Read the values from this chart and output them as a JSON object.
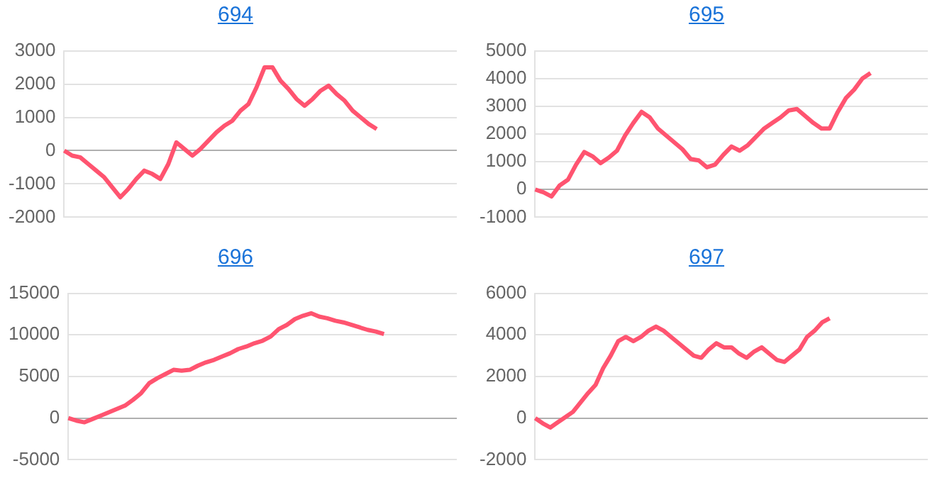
{
  "chart_data": [
    {
      "type": "line",
      "title": "694",
      "categories": [
        null,
        null,
        null,
        null,
        null,
        null,
        null,
        null,
        null,
        null,
        null,
        null,
        null,
        null,
        null,
        null,
        null,
        null,
        null,
        null,
        null,
        null,
        null,
        null,
        null,
        null,
        null,
        null,
        null,
        null,
        null,
        null,
        null,
        null,
        null,
        null,
        null,
        null,
        null,
        null,
        null,
        null,
        null,
        null,
        null,
        null,
        null,
        null,
        null,
        null
      ],
      "series": [
        {
          "color": "#ff5470",
          "values": [
            0,
            -150,
            -200,
            -400,
            -600,
            -800,
            -1100,
            -1400,
            -1150,
            -850,
            -600,
            -700,
            -850,
            -400,
            250,
            50,
            -150,
            50,
            300,
            550,
            750,
            900,
            1200,
            1400,
            1900,
            2500,
            2500,
            2100,
            1850,
            1550,
            1350,
            1550,
            1800,
            1950,
            1700,
            1500,
            1200,
            1000,
            800,
            650,
            null,
            null,
            null,
            null,
            null,
            null,
            null,
            null,
            null,
            null
          ]
        }
      ],
      "ylim": [
        -2000,
        3000
      ],
      "yticks": [
        -2000,
        -1000,
        0,
        1000,
        2000,
        3000
      ],
      "grid": "y",
      "marker": "none",
      "line_style": "solid",
      "tick_labels": "y"
    },
    {
      "type": "line",
      "title": "695",
      "categories": [
        null,
        null,
        null,
        null,
        null,
        null,
        null,
        null,
        null,
        null,
        null,
        null,
        null,
        null,
        null,
        null,
        null,
        null,
        null,
        null,
        null,
        null,
        null,
        null,
        null,
        null,
        null,
        null,
        null,
        null,
        null,
        null,
        null,
        null,
        null,
        null,
        null,
        null,
        null,
        null,
        null,
        null,
        null,
        null,
        null,
        null,
        null,
        null,
        null
      ],
      "series": [
        {
          "color": "#ff5470",
          "values": [
            0,
            -100,
            -250,
            150,
            350,
            900,
            1350,
            1200,
            950,
            1150,
            1400,
            1950,
            2400,
            2800,
            2600,
            2200,
            1950,
            1700,
            1450,
            1100,
            1050,
            800,
            900,
            1250,
            1550,
            1400,
            1600,
            1900,
            2200,
            2400,
            2600,
            2850,
            2900,
            2650,
            2400,
            2200,
            2200,
            2800,
            3300,
            3600,
            4000,
            4200,
            null,
            null,
            null,
            null,
            null,
            null,
            null
          ]
        }
      ],
      "ylim": [
        -1000,
        5000
      ],
      "yticks": [
        -1000,
        0,
        1000,
        2000,
        3000,
        4000,
        5000
      ],
      "grid": "y",
      "marker": "none",
      "line_style": "solid",
      "tick_labels": "y"
    },
    {
      "type": "line",
      "title": "696",
      "categories": [
        null,
        null,
        null,
        null,
        null,
        null,
        null,
        null,
        null,
        null,
        null,
        null,
        null,
        null,
        null,
        null,
        null,
        null,
        null,
        null,
        null,
        null,
        null,
        null,
        null,
        null,
        null,
        null,
        null,
        null,
        null,
        null,
        null,
        null,
        null,
        null,
        null,
        null,
        null,
        null,
        null,
        null,
        null,
        null,
        null,
        null,
        null,
        null,
        null
      ],
      "series": [
        {
          "color": "#ff5470",
          "values": [
            0,
            -300,
            -500,
            -100,
            300,
            700,
            1100,
            1500,
            2200,
            3000,
            4200,
            4800,
            5300,
            5800,
            5700,
            5800,
            6300,
            6700,
            7000,
            7400,
            7800,
            8300,
            8600,
            9000,
            9300,
            9800,
            10700,
            11200,
            11900,
            12300,
            12600,
            12200,
            12000,
            11700,
            11500,
            11200,
            10900,
            10600,
            10400,
            10100,
            null,
            null,
            null,
            null,
            null,
            null,
            null,
            null,
            null
          ]
        }
      ],
      "ylim": [
        -5000,
        15000
      ],
      "yticks": [
        -5000,
        0,
        5000,
        10000,
        15000
      ],
      "grid": "y",
      "marker": "none",
      "line_style": "solid",
      "tick_labels": "y"
    },
    {
      "type": "line",
      "title": "697",
      "categories": [
        null,
        null,
        null,
        null,
        null,
        null,
        null,
        null,
        null,
        null,
        null,
        null,
        null,
        null,
        null,
        null,
        null,
        null,
        null,
        null,
        null,
        null,
        null,
        null,
        null,
        null,
        null,
        null,
        null,
        null,
        null,
        null,
        null,
        null,
        null,
        null,
        null,
        null,
        null,
        null,
        null,
        null,
        null,
        null,
        null,
        null,
        null,
        null,
        null,
        null,
        null,
        null,
        null
      ],
      "series": [
        {
          "color": "#ff5470",
          "values": [
            0,
            -250,
            -450,
            -200,
            50,
            300,
            750,
            1200,
            1600,
            2400,
            3000,
            3700,
            3900,
            3700,
            3900,
            4200,
            4400,
            4200,
            3900,
            3600,
            3300,
            3000,
            2900,
            3300,
            3600,
            3400,
            3400,
            3100,
            2900,
            3200,
            3400,
            3100,
            2800,
            2700,
            3000,
            3300,
            3900,
            4200,
            4600,
            4800,
            null,
            null,
            null,
            null,
            null,
            null,
            null,
            null,
            null,
            null,
            null,
            null,
            null
          ]
        }
      ],
      "ylim": [
        -2000,
        6000
      ],
      "yticks": [
        -2000,
        0,
        2000,
        4000,
        6000
      ],
      "grid": "y",
      "marker": "none",
      "line_style": "solid",
      "tick_labels": "y"
    }
  ]
}
